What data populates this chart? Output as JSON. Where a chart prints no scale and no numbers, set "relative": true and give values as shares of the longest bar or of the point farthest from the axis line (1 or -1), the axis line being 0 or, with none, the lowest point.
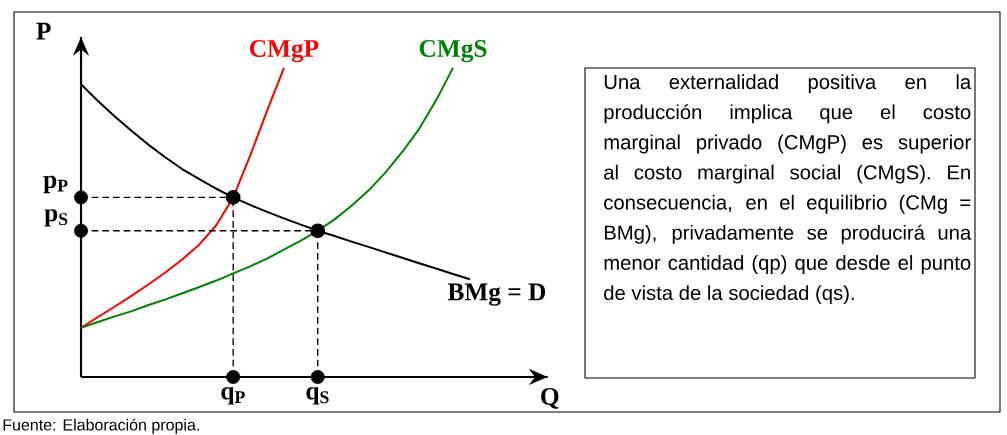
{
  "chart_data": {
    "type": "line",
    "relative": true,
    "xlabel": "Q",
    "ylabel": "P",
    "marker": "none",
    "line_style": "solid",
    "categories": [
      null,
      null,
      null,
      null,
      null,
      null,
      null,
      null,
      null,
      "q$_{P}$",
      null,
      null,
      null,
      null,
      "q$_{S}$",
      null,
      null,
      null,
      null,
      null,
      null,
      null,
      null,
      null
    ],
    "series": [
      {
        "name": "BMg = D",
        "color": "#000000",
        "values": [
          0.947,
          0.893,
          0.843,
          0.796,
          0.751,
          0.71,
          0.672,
          0.64,
          0.609,
          0.581,
          0.557,
          0.534,
          0.513,
          0.493,
          0.473,
          0.456,
          0.438,
          0.421,
          0.403,
          0.386,
          0.368,
          0.351,
          0.333,
          0.316
        ]
      },
      {
        "name": "CMgP",
        "color": "#ff0000",
        "values": [
          0.159,
          0.194,
          0.228,
          0.263,
          0.3,
          0.339,
          0.381,
          0.429,
          0.491,
          0.581,
          0.716,
          0.861,
          1.0,
          null,
          null,
          null,
          null,
          null,
          null,
          null,
          null,
          null,
          null,
          null
        ]
      },
      {
        "name": "CMgS",
        "color": "#008000",
        "values": [
          0.159,
          0.178,
          0.196,
          0.213,
          0.233,
          0.251,
          0.271,
          0.291,
          0.312,
          0.335,
          0.358,
          0.383,
          0.412,
          0.441,
          0.473,
          0.51,
          0.554,
          0.603,
          0.661,
          0.728,
          0.803,
          0.895,
          1.0,
          null
        ]
      },
      {
        "name": "p$_{P}$",
        "line_style": "dashed",
        "color": "#000000",
        "values": [
          0.581,
          0.581,
          0.581,
          0.581,
          0.581,
          0.581,
          0.581,
          0.581,
          0.581,
          0.581,
          null,
          null,
          null,
          null,
          null,
          null,
          null,
          null,
          null,
          null,
          null,
          null,
          null,
          null
        ]
      },
      {
        "name": "p$_{S}$",
        "line_style": "dashed",
        "color": "#000000",
        "values": [
          0.473,
          0.473,
          0.473,
          0.473,
          0.473,
          0.473,
          0.473,
          0.473,
          0.473,
          0.473,
          0.473,
          0.473,
          0.473,
          0.473,
          0.473,
          null,
          null,
          null,
          null,
          null,
          null,
          null,
          null,
          null
        ]
      },
      {
        "type": "lollipop",
        "line_style": "dashed",
        "marker": "circle",
        "color": "#000000",
        "values": [
          null,
          null,
          null,
          null,
          null,
          null,
          null,
          null,
          null,
          0.581,
          null,
          null,
          null,
          null,
          0.473,
          null,
          null,
          null,
          null,
          null,
          null,
          null,
          null,
          null
        ]
      },
      {
        "type": "scatter",
        "marker": "circle",
        "color": "#000000",
        "values": [
          0.581,
          null,
          null,
          null,
          null,
          null,
          null,
          null,
          null,
          0,
          null,
          null,
          null,
          null,
          0,
          null,
          null,
          null,
          null,
          null,
          null,
          null,
          null,
          null
        ]
      },
      {
        "type": "scatter",
        "marker": "circle",
        "color": "#000000",
        "values": [
          0.473,
          null,
          null,
          null,
          null,
          null,
          null,
          null,
          null,
          null,
          null,
          null,
          null,
          null,
          null,
          null,
          null,
          null,
          null,
          null,
          null,
          null,
          null,
          null
        ]
      }
    ],
    "annotations": [
      "Una externalidad positiva en la producción implica que el costo marginal privado (CMgP) es superior al costo marginal social (CMgS). En consecuencia, en el equilibrio (CMg = BMg), privadamente se producirá una menor cantidad (qp) que desde el punto de vista de la sociedad (qs).",
      "Fuente: Elaboración propia."
    ]
  }
}
